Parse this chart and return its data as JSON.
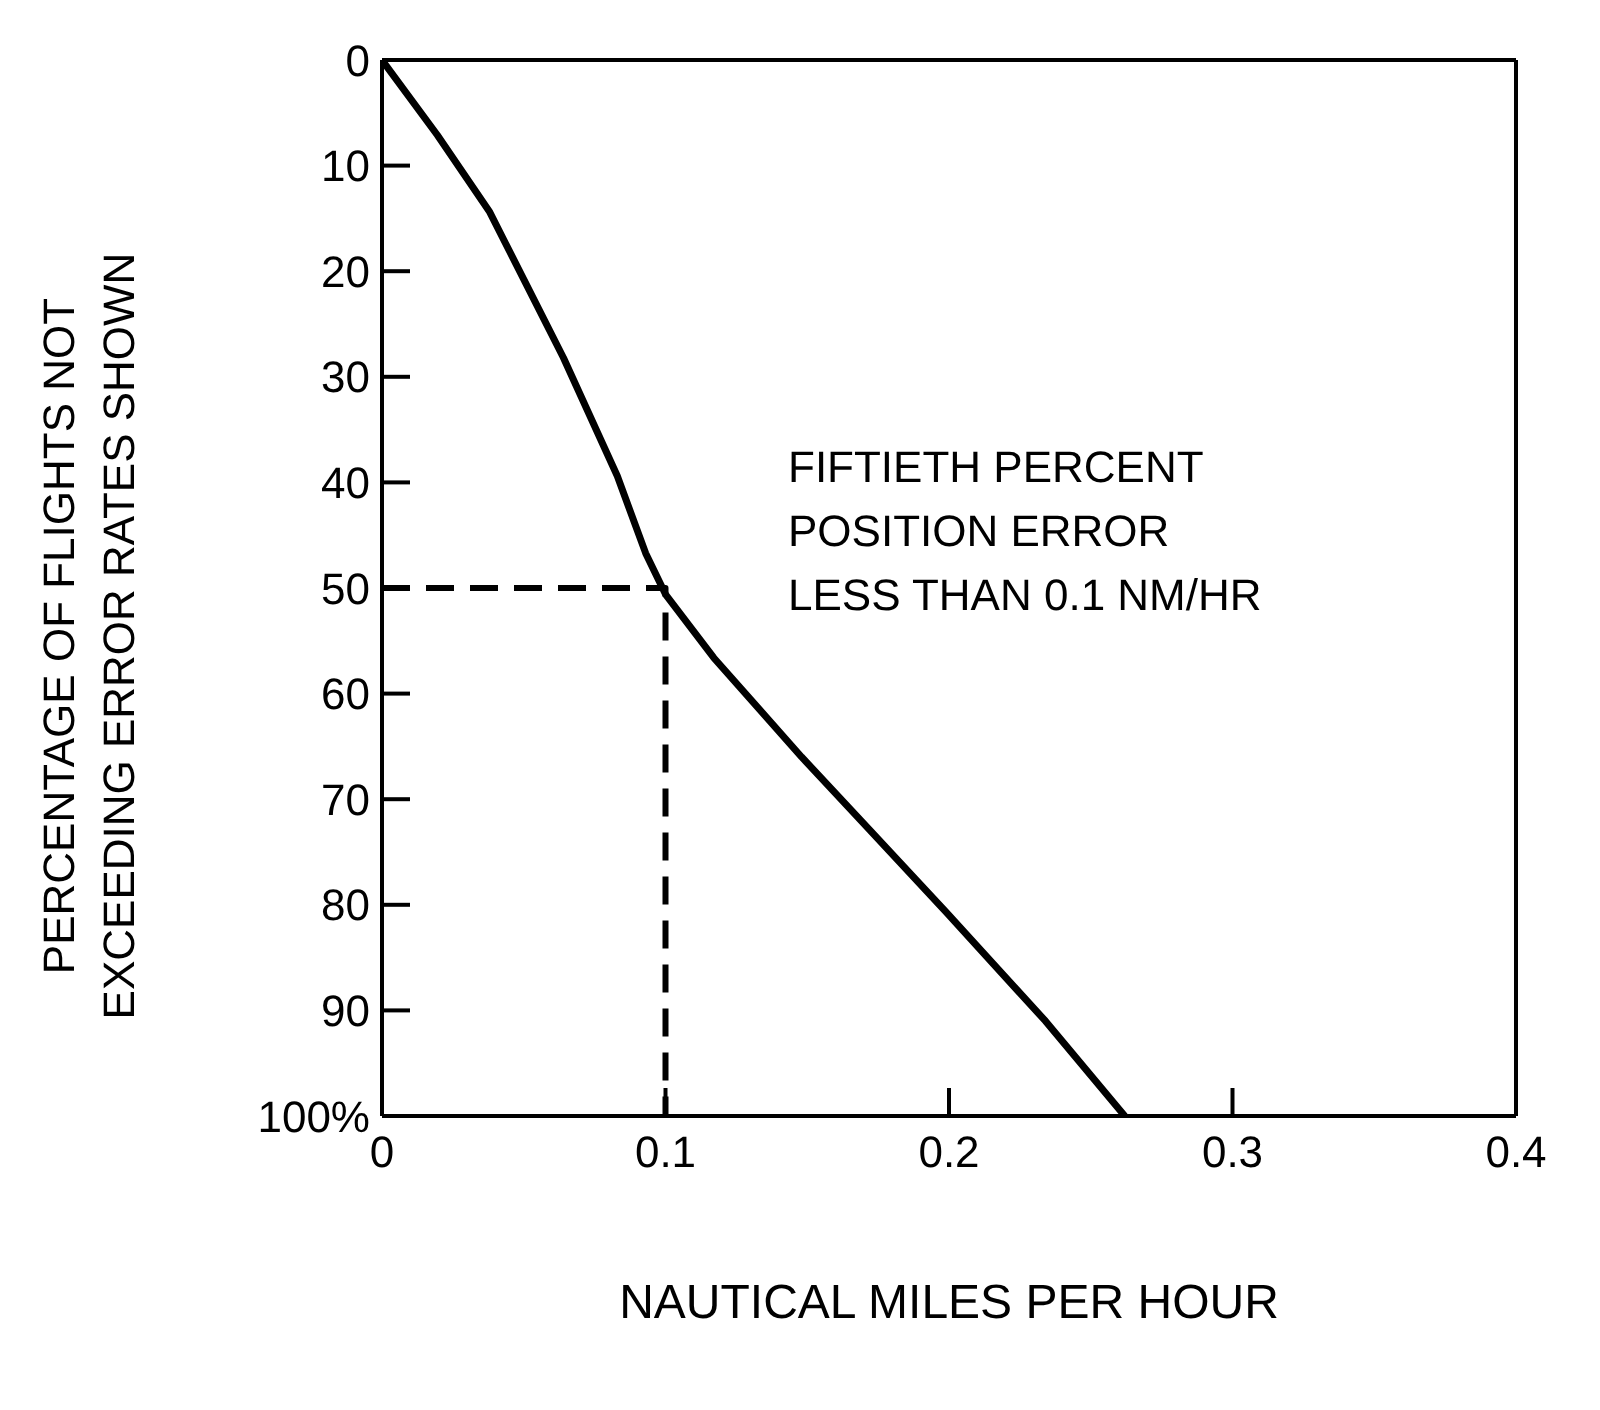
{
  "chart_data": {
    "type": "line",
    "xlabel": "NAUTICAL MILES PER HOUR",
    "ylabel": "PERCENTAGE OF FLIGHTS NOT\nEXCEEDING ERROR RATES SHOWN",
    "series": [
      {
        "color": "#000000",
        "x": [
          0,
          0.0195,
          0.038,
          0.064,
          0.083,
          0.093,
          0.1,
          0.117,
          0.148,
          0.172,
          0.199,
          0.234,
          0.262
        ],
        "values": [
          0,
          7.1,
          14.4,
          28.2,
          39.4,
          46.7,
          50.6,
          56.6,
          66,
          72.9,
          80.7,
          91,
          100
        ]
      },
      {
        "color": "#000000",
        "line_style": "dashed",
        "x": [
          0,
          0.1,
          0.1
        ],
        "values": [
          50,
          50,
          100
        ]
      }
    ],
    "xlim": [
      0,
      0.4
    ],
    "xticks": [
      0,
      0.1,
      0.2,
      0.3,
      0.4
    ],
    "ylim": [
      100,
      0
    ],
    "yticks": [
      0,
      10,
      20,
      30,
      40,
      50,
      60,
      70,
      80,
      90,
      {
        "value": 100,
        "label": "100%"
      }
    ],
    "annotations": [
      "FIFTIETH PERCENT\nPOSITION ERROR\nLESS THAN 0.1 NM/HR"
    ],
    "legend": false,
    "marker": "none",
    "line_style": "solid"
  }
}
